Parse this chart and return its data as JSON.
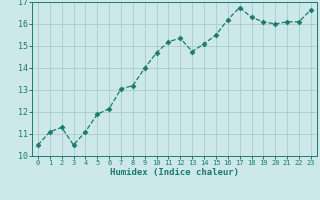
{
  "x": [
    0,
    1,
    2,
    3,
    4,
    5,
    6,
    7,
    8,
    9,
    10,
    11,
    12,
    13,
    14,
    15,
    16,
    17,
    18,
    19,
    20,
    21,
    22,
    23
  ],
  "y": [
    10.5,
    11.1,
    11.3,
    10.5,
    11.1,
    11.9,
    12.15,
    13.05,
    13.2,
    14.0,
    14.7,
    15.2,
    15.35,
    14.75,
    15.1,
    15.5,
    16.2,
    16.75,
    16.3,
    16.1,
    16.0,
    16.1,
    16.1,
    16.65
  ],
  "xlim": [
    -0.5,
    23.5
  ],
  "ylim": [
    10,
    17
  ],
  "xticks": [
    0,
    1,
    2,
    3,
    4,
    5,
    6,
    7,
    8,
    9,
    10,
    11,
    12,
    13,
    14,
    15,
    16,
    17,
    18,
    19,
    20,
    21,
    22,
    23
  ],
  "yticks": [
    10,
    11,
    12,
    13,
    14,
    15,
    16,
    17
  ],
  "xlabel": "Humidex (Indice chaleur)",
  "line_color": "#1a7a6e",
  "bg_color": "#cce8e8",
  "grid_color": "#aacccc",
  "marker": "D",
  "marker_size": 2.5,
  "line_width": 0.9,
  "title": ""
}
